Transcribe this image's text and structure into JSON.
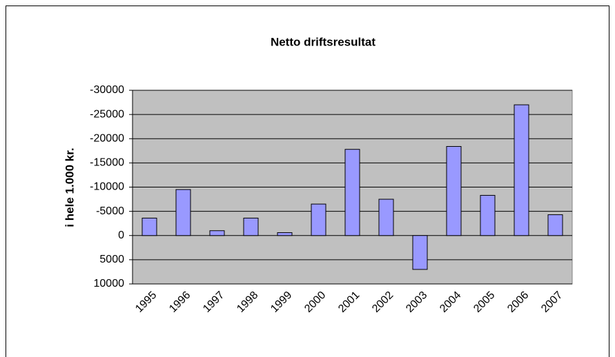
{
  "chart_data": {
    "type": "bar",
    "title": "Netto driftsresultat",
    "y_label": "i hele 1.000 kr.",
    "categories": [
      "1995",
      "1996",
      "1997",
      "1998",
      "1999",
      "2000",
      "2001",
      "2002",
      "2003",
      "2004",
      "2005",
      "2006",
      "2007"
    ],
    "values": [
      -3600,
      -9500,
      -1000,
      -3600,
      -600,
      -6500,
      -17800,
      -7500,
      7000,
      -18400,
      -8300,
      -27000,
      -4300
    ],
    "color": "#9999ff",
    "ylim": [
      -30000,
      10000
    ],
    "y_inverted": true,
    "yticks": [
      -30000,
      -25000,
      -20000,
      -15000,
      -10000,
      -5000,
      0,
      5000,
      10000
    ],
    "grid": true
  }
}
